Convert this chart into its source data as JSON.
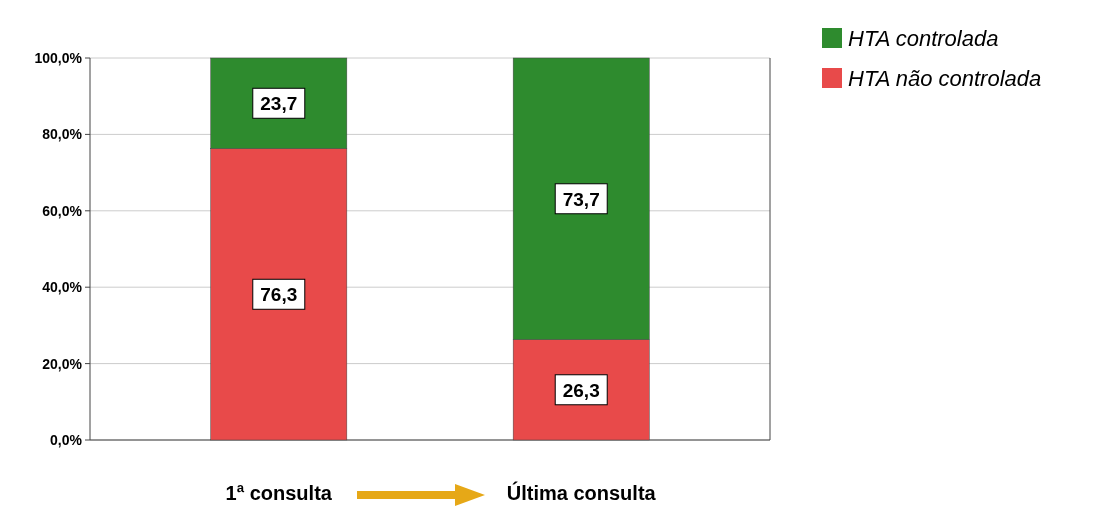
{
  "chart_data": {
    "type": "bar",
    "stacked": true,
    "categories": [
      "1ª consulta",
      "Última consulta"
    ],
    "series": [
      {
        "name": "HTA não controlada",
        "color": "#e84a4a",
        "values": [
          76.3,
          26.3
        ],
        "value_labels": [
          "76,3",
          "26,3"
        ]
      },
      {
        "name": "HTA controlada",
        "color": "#2e8b2e",
        "values": [
          23.7,
          73.7
        ],
        "value_labels": [
          "23,7",
          "73,7"
        ]
      }
    ],
    "ylim": [
      0,
      100
    ],
    "yticks": [
      {
        "value": 0,
        "label": "0,0%"
      },
      {
        "value": 20,
        "label": "20,0%"
      },
      {
        "value": 40,
        "label": "40,0%"
      },
      {
        "value": 60,
        "label": "60,0%"
      },
      {
        "value": 80,
        "label": "80,0%"
      },
      {
        "value": 100,
        "label": "100,0%"
      }
    ],
    "grid": "y",
    "legend": "top right"
  }
}
